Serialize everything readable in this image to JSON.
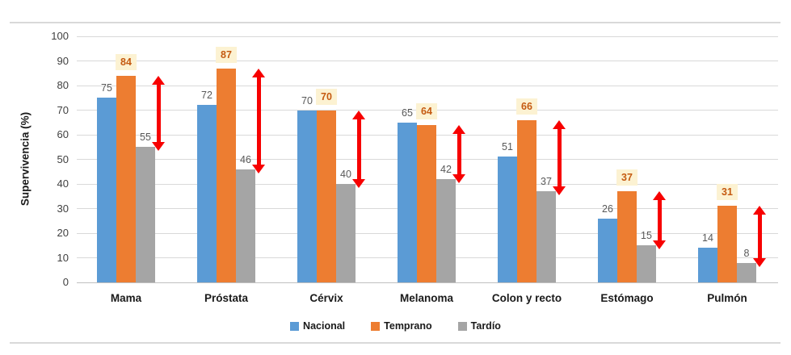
{
  "chart_data": {
    "type": "bar",
    "title": "",
    "xlabel": "",
    "ylabel": "Supervivencia (%)",
    "ylim": [
      0,
      100
    ],
    "ytick_step": 10,
    "grid": true,
    "legend_position": "bottom",
    "categories": [
      "Mama",
      "Próstata",
      "Cérvix",
      "Melanoma",
      "Colon y recto",
      "Estómago",
      "Pulmón"
    ],
    "series": [
      {
        "name": "Nacional",
        "color": "#5b9bd5",
        "values": [
          75,
          72,
          70,
          65,
          51,
          26,
          14
        ]
      },
      {
        "name": "Temprano",
        "color": "#ed7d31",
        "values": [
          84,
          87,
          70,
          64,
          66,
          37,
          31
        ]
      },
      {
        "name": "Tardío",
        "color": "#a5a5a5",
        "values": [
          55,
          46,
          40,
          42,
          37,
          15,
          8
        ]
      }
    ],
    "value_labels": {
      "default_color": "#595959",
      "highlight_series": "Temprano",
      "highlight_text_color": "#c55a11",
      "highlight_badge_bg": "#fcf2d2"
    },
    "annotations": {
      "gap_arrows": {
        "shape": "vertical-double-arrow",
        "color": "#f70000",
        "from_series": "Temprano",
        "to_series": "Tardío",
        "per_category": true
      }
    },
    "axis_colors": {
      "gridline": "#d9d9d9",
      "axis_line": "#bfbfbf",
      "tick_label": "#404040"
    }
  }
}
